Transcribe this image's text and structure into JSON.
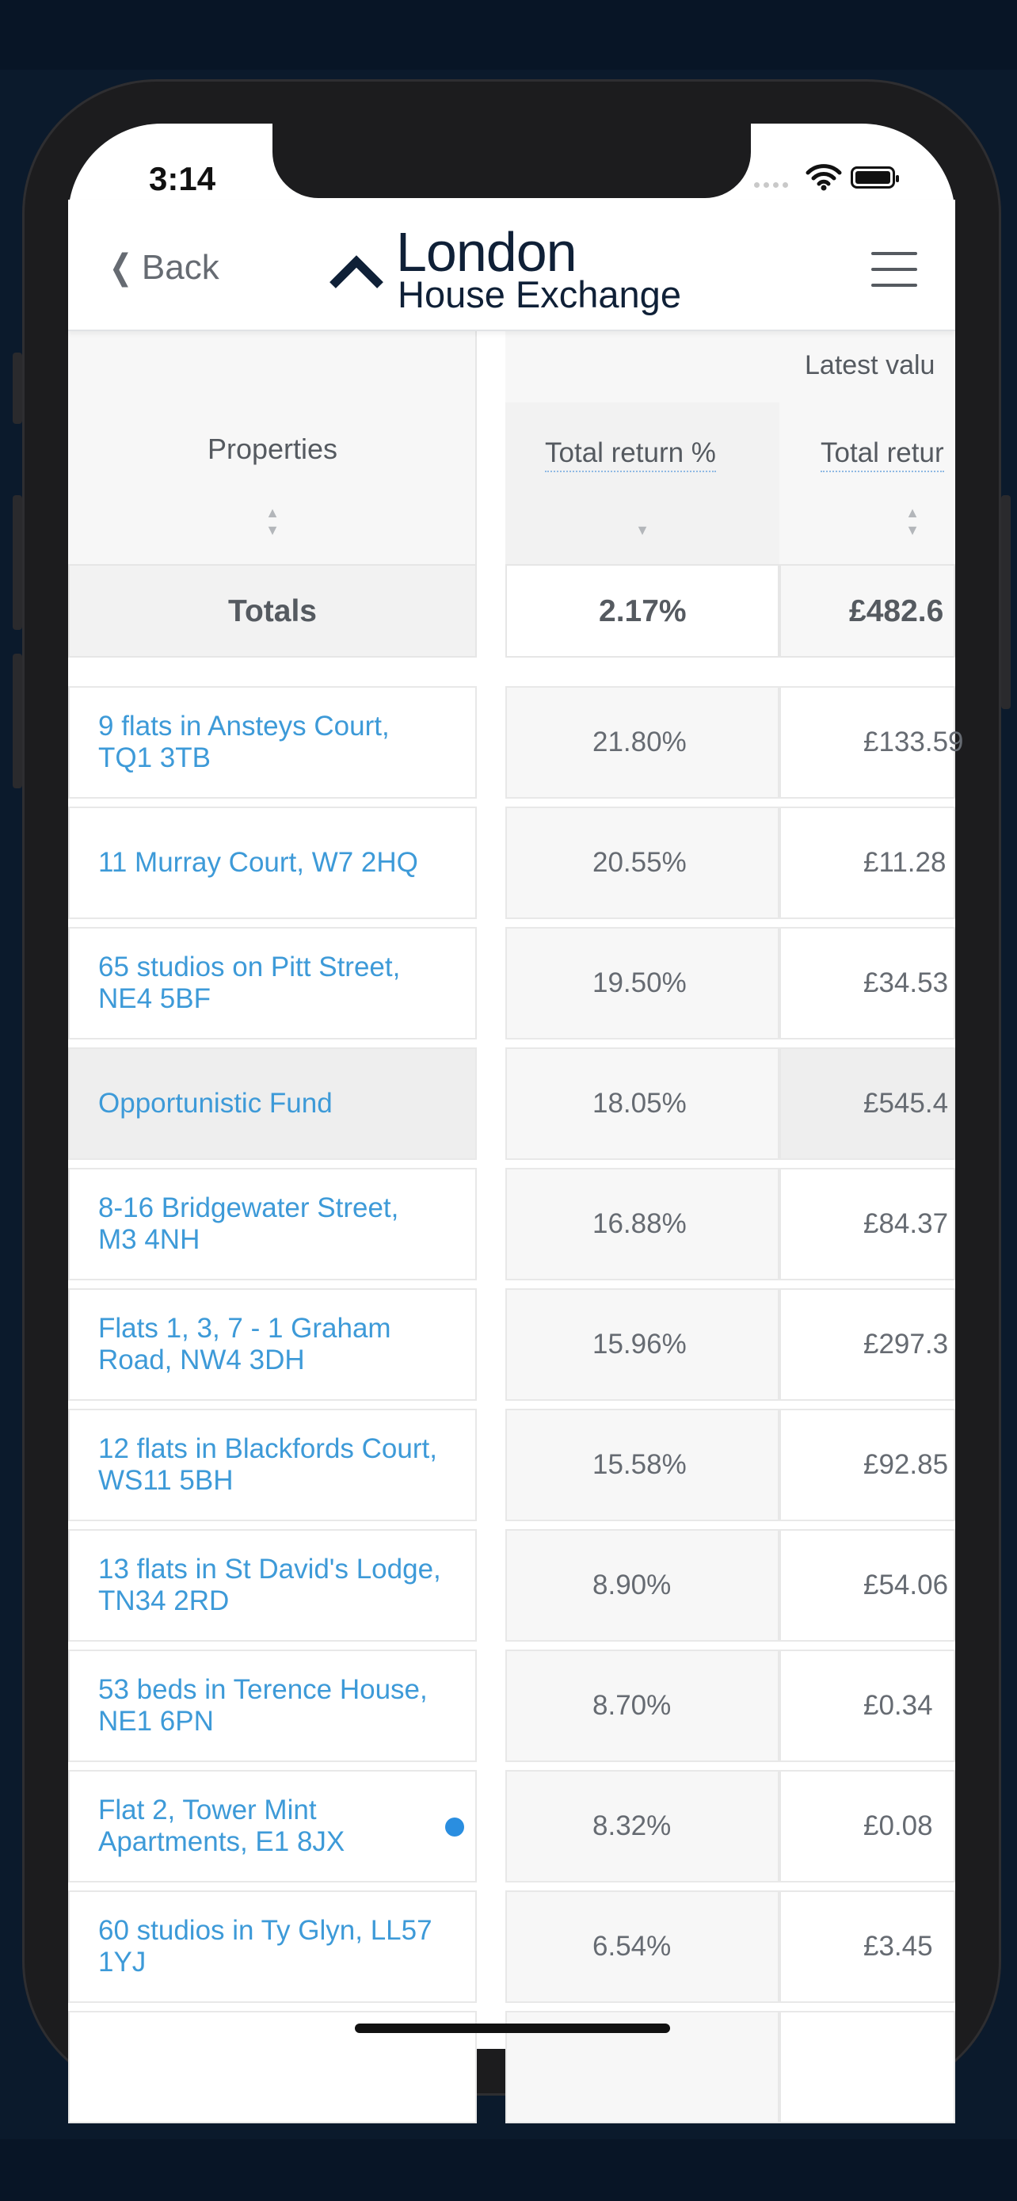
{
  "status_bar": {
    "time": "3:14"
  },
  "nav": {
    "back_label": "Back",
    "logo_line1": "London",
    "logo_line2": "House Exchange"
  },
  "table": {
    "properties_header": "Properties",
    "group_header": "Latest valu",
    "col1_header": "Total return %",
    "col2_header": "Total retur",
    "totals_label": "Totals",
    "totals_col1": "2.17%",
    "totals_col2": "£482.6",
    "rows": [
      {
        "name": "9 flats in Ansteys Court, TQ1 3TB",
        "ret_pct": "21.80%",
        "ret_val": "£133.59"
      },
      {
        "name": "11 Murray Court, W7 2HQ",
        "ret_pct": "20.55%",
        "ret_val": "£11.28"
      },
      {
        "name": "65 studios on Pitt Street, NE4 5BF",
        "ret_pct": "19.50%",
        "ret_val": "£34.53"
      },
      {
        "name": "Opportunistic Fund",
        "ret_pct": "18.05%",
        "ret_val": "£545.4"
      },
      {
        "name": "8-16 Bridgewater Street, M3 4NH",
        "ret_pct": "16.88%",
        "ret_val": "£84.37"
      },
      {
        "name": "Flats 1, 3, 7 - 1 Graham Road, NW4 3DH",
        "ret_pct": "15.96%",
        "ret_val": "£297.3"
      },
      {
        "name": "12 flats in Blackfords Court, WS11 5BH",
        "ret_pct": "15.58%",
        "ret_val": "£92.85"
      },
      {
        "name": "13 flats in St David's Lodge, TN34 2RD",
        "ret_pct": "8.90%",
        "ret_val": "£54.06"
      },
      {
        "name": "53 beds in Terence House, NE1 6PN",
        "ret_pct": "8.70%",
        "ret_val": "£0.34"
      },
      {
        "name": "Flat 2, Tower Mint Apartments, E1 8JX",
        "ret_pct": "8.32%",
        "ret_val": "£0.08"
      },
      {
        "name": "60 studios in Ty Glyn, LL57 1YJ",
        "ret_pct": "6.54%",
        "ret_val": "£3.45"
      }
    ]
  },
  "colors": {
    "link": "#3d9ad8",
    "brand_navy": "#0f2037",
    "indicator_dot": "#2a8ee0"
  }
}
